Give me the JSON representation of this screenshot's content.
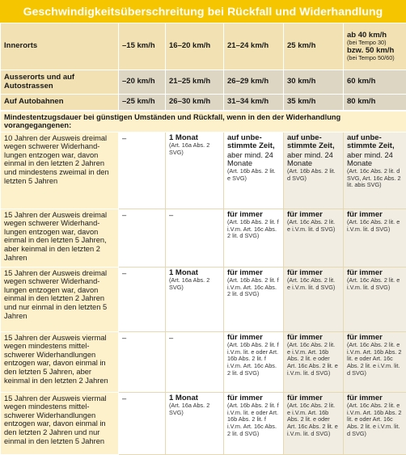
{
  "title": "Geschwindigkeitsüberschreitung bei Rückfall und Widerhandlung",
  "header": {
    "rows": [
      {
        "label": "Innerorts",
        "c1": "–15 km/h",
        "c2": "16–20 km/h",
        "c3": "21–24 km/h",
        "c4": "25 km/h",
        "c5a": "ab 40 km/h",
        "c5a_note": "(bei Tempo 30)",
        "c5b": "bzw. 50 km/h",
        "c5b_note": "(bei Tempo 50/60)"
      },
      {
        "label": "Ausserorts und auf Autostrassen",
        "c1": "–20 km/h",
        "c2": "21–25 km/h",
        "c3": "26–29 km/h",
        "c4": "30 km/h",
        "c5": "60 km/h"
      },
      {
        "label": "Auf Autobahnen",
        "c1": "–25 km/h",
        "c2": "26–30 km/h",
        "c3": "31–34 km/h",
        "c4": "35 km/h",
        "c5": "80 km/h"
      }
    ]
  },
  "band": "Mindestentzugsdauer bei günstigen Umständen und Rückfall, wenn in den der Widerhandlung vorangegangenen:",
  "rows": [
    {
      "desc": "10 Jahren der Ausweis dreimal wegen schwerer Widerhand- lungen entzogen war, davon einmal in den letzten 2 Jahren und mindestens zweimal in den letzten 5 Jahren",
      "c1": "–",
      "c2k": "1 Monat",
      "c2r": "(Art. 16a Abs. 2 SVG)",
      "c3k": "auf unbe- stimmte Zeit,",
      "c3n": "aber mind. 24 Monate",
      "c3r": "(Art. 16b Abs. 2 lit. e SVG)",
      "c4k": "auf unbe- stimmte Zeit,",
      "c4n": "aber mind. 24 Monate",
      "c4r": "(Art. 16b Abs. 2 lit. d SVG)",
      "c5k": "auf unbe- stimmte Zeit,",
      "c5n": "aber mind. 24 Monate",
      "c5r": "(Art. 16c Abs. 2 lit. d SVG, Art. 16c Abs. 2 lit. abis SVG)"
    },
    {
      "desc": "15 Jahren der Ausweis dreimal wegen schwerer Widerhand- lungen entzogen war, davon einmal in den letzten 5 Jahren, aber keinmal in den letzten 2 Jahren",
      "c1": "–",
      "c2": "–",
      "c3k": "für immer",
      "c3r": "(Art. 16b Abs. 2 lit. f i.V.m. Art. 16c Abs. 2 lit. d SVG)",
      "c4k": "für immer",
      "c4r": "(Art. 16c Abs. 2 lit. e i.V.m. lit. d SVG)",
      "c5k": "für immer",
      "c5r": "(Art. 16c Abs. 2 lit. e i.V.m. lit. d SVG)"
    },
    {
      "desc": "15 Jahren der Ausweis dreimal wegen schwerer Widerhand- lungen entzogen war, davon einmal in den letzten 2 Jahren und nur einmal in den letzten 5 Jahren",
      "c1": "–",
      "c2k": "1 Monat",
      "c2r": "(Art. 16a Abs. 2 SVG)",
      "c3k": "für immer",
      "c3r": "(Art. 16b Abs. 2 lit. f i.V.m. Art. 16c Abs. 2 lit. d SVG)",
      "c4k": "für immer",
      "c4r": "(Art. 16c Abs. 2 lit. e i.V.m. lit. d SVG)",
      "c5k": "für immer",
      "c5r": "(Art. 16c Abs. 2 lit. e i.V.m. lit. d SVG)"
    },
    {
      "desc": "15 Jahren der Ausweis viermal wegen mindestens mittel- schwerer Widerhandlungen entzogen war, davon einmal in den letzten 5 Jahren, aber keinmal in den letzten 2 Jahren",
      "c1": "–",
      "c2": "–",
      "c3k": "für immer",
      "c3r": "(Art. 16b Abs. 2 lit. f i.V.m. lit. e oder Art. 16b Abs. 2 lit. f i.V.m. Art. 16c Abs. 2 lit. d SVG)",
      "c4k": "für immer",
      "c4r": "(Art. 16c Abs. 2 lit. e i.V.m. Art. 16b Abs. 2 lit. e oder Art. 16c Abs. 2 lit. e i.V.m. lit. d SVG)",
      "c5k": "für immer",
      "c5r": "(Art. 16c Abs. 2 lit. e i.V.m. Art. 16b Abs. 2 lit. e oder Art. 16c Abs. 2 lit. e i.V.m. lit. d SVG)"
    },
    {
      "desc": "15 Jahren der Ausweis viermal wegen mindestens mittel- schwerer Widerhandlungen entzogen war, davon einmal in den letzten 2 Jahren und nur einmal in den letzten 5 Jahren",
      "c1": "–",
      "c2k": "1 Monat",
      "c2r": "(Art. 16a Abs. 2 SVG)",
      "c3k": "für immer",
      "c3r": "(Art. 16b Abs. 2 lit. f i.V.m. lit. e oder Art. 16b Abs. 2 lit. f i.V.m. Art. 16c Abs. 2 lit. d SVG)",
      "c4k": "für immer",
      "c4r": "(Art. 16c Abs. 2 lit. e i.V.m. Art. 16b Abs. 2 lit. e oder Art. 16c Abs. 2 lit. e i.V.m. lit. d SVG)",
      "c5k": "für immer",
      "c5r": "(Art. 16c Abs. 2 lit. e i.V.m. Art. 16b Abs. 2 lit. e oder Art. 16c Abs. 2 lit. e i.V.m. lit. d SVG)"
    }
  ]
}
